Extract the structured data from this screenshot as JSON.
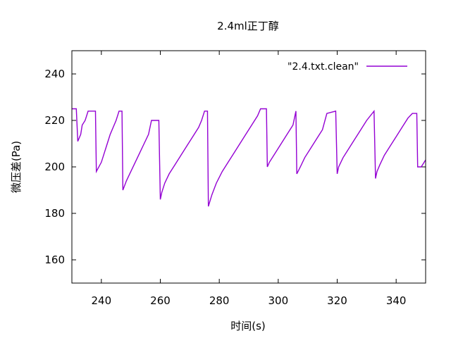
{
  "chart_data": {
    "type": "line",
    "title": "2.4ml正丁醇",
    "xlabel": "时间(s)",
    "ylabel": "微压差(Pa)",
    "xlim": [
      230,
      350
    ],
    "ylim": [
      150,
      250
    ],
    "xticks": [
      240,
      260,
      280,
      300,
      320,
      340
    ],
    "yticks": [
      160,
      180,
      200,
      220,
      240
    ],
    "xtick_labels": [
      "240",
      "260",
      "280",
      "300",
      "320",
      "340"
    ],
    "ytick_labels": [
      "160",
      "180",
      "200",
      "220",
      "240"
    ],
    "grid": false,
    "legend_position": "top-right",
    "series_color": "#9400d3",
    "series": [
      {
        "name": "\"2.4.txt.clean\"",
        "x": [
          230.0,
          231.5,
          232.0,
          233.0,
          233.5,
          234.5,
          235.0,
          235.5,
          238.0,
          238.3,
          240.0,
          241.0,
          242.0,
          243.0,
          244.0,
          245.0,
          246.0,
          247.0,
          247.3,
          248.5,
          250.0,
          251.5,
          253.0,
          254.5,
          256.0,
          257.0,
          259.5,
          260.0,
          260.5,
          261.5,
          263.0,
          265.0,
          267.0,
          269.0,
          271.0,
          273.0,
          274.0,
          275.0,
          276.0,
          276.3,
          277.5,
          279.0,
          281.0,
          283.0,
          285.0,
          287.0,
          289.0,
          291.0,
          293.0,
          294.0,
          295.5,
          296.0,
          296.3,
          297.0,
          299.0,
          301.0,
          303.0,
          305.0,
          306.0,
          306.3,
          307.5,
          309.0,
          311.0,
          313.0,
          315.0,
          316.5,
          319.5,
          320.0,
          320.5,
          322.0,
          324.0,
          326.0,
          328.0,
          330.0,
          332.5,
          333.0,
          333.5,
          334.5,
          336.0,
          338.0,
          340.0,
          342.0,
          344.0,
          345.5,
          347.0,
          347.3,
          348.5,
          350.0
        ],
        "values": [
          225,
          225,
          211,
          214,
          218,
          220,
          222,
          224,
          224,
          198,
          202,
          206,
          210,
          214,
          217,
          220,
          224,
          224,
          190,
          194,
          198,
          202,
          206,
          210,
          214,
          220,
          220,
          186,
          189,
          193,
          197,
          201,
          205,
          209,
          213,
          217,
          220,
          224,
          224,
          183,
          188,
          193,
          198,
          202,
          206,
          210,
          214,
          218,
          222,
          225,
          225,
          225,
          200,
          202,
          206,
          210,
          214,
          218,
          224,
          197,
          200,
          204,
          208,
          212,
          216,
          223,
          224,
          197,
          200,
          204,
          208,
          212,
          216,
          220,
          224,
          195,
          198,
          201,
          205,
          209,
          213,
          217,
          221,
          223,
          223,
          200,
          200,
          203
        ]
      }
    ]
  }
}
